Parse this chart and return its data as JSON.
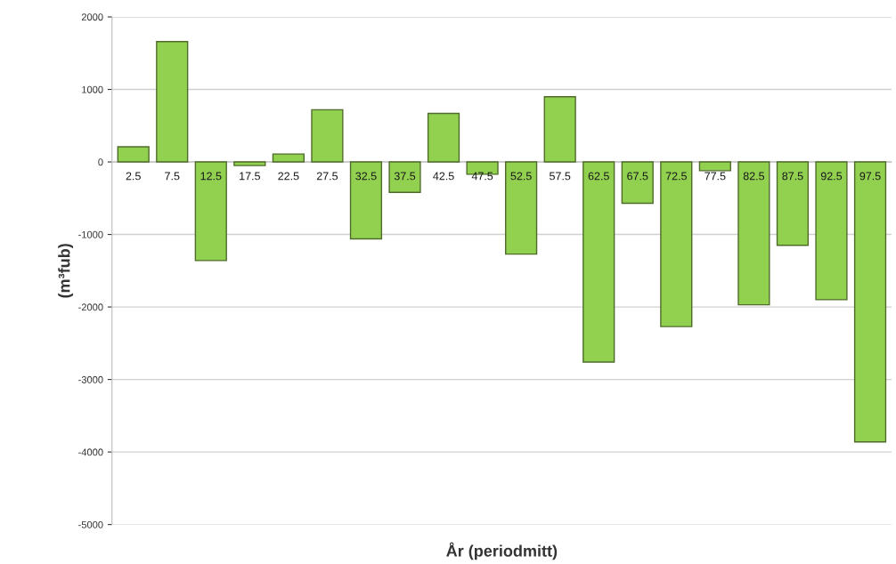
{
  "chart_data": {
    "type": "bar",
    "xlabel": "År (periodmitt)",
    "ylabel": "(m³fub)",
    "categories": [
      "2.5",
      "7.5",
      "12.5",
      "17.5",
      "22.5",
      "27.5",
      "32.5",
      "37.5",
      "42.5",
      "47.5",
      "52.5",
      "57.5",
      "62.5",
      "67.5",
      "72.5",
      "77.5",
      "82.5",
      "87.5",
      "92.5",
      "97.5"
    ],
    "values": [
      210,
      1660,
      -1360,
      -50,
      110,
      720,
      -1060,
      -420,
      670,
      -170,
      -1270,
      900,
      -2760,
      -570,
      -2270,
      -120,
      -1970,
      -1150,
      -1900,
      -3860
    ],
    "color": "#92d050",
    "ylim": [
      -5000,
      2000
    ],
    "yticks": [
      -5000,
      -4000,
      -3000,
      -2000,
      -1000,
      0,
      1000,
      2000
    ],
    "grid": "y",
    "legend": false
  }
}
